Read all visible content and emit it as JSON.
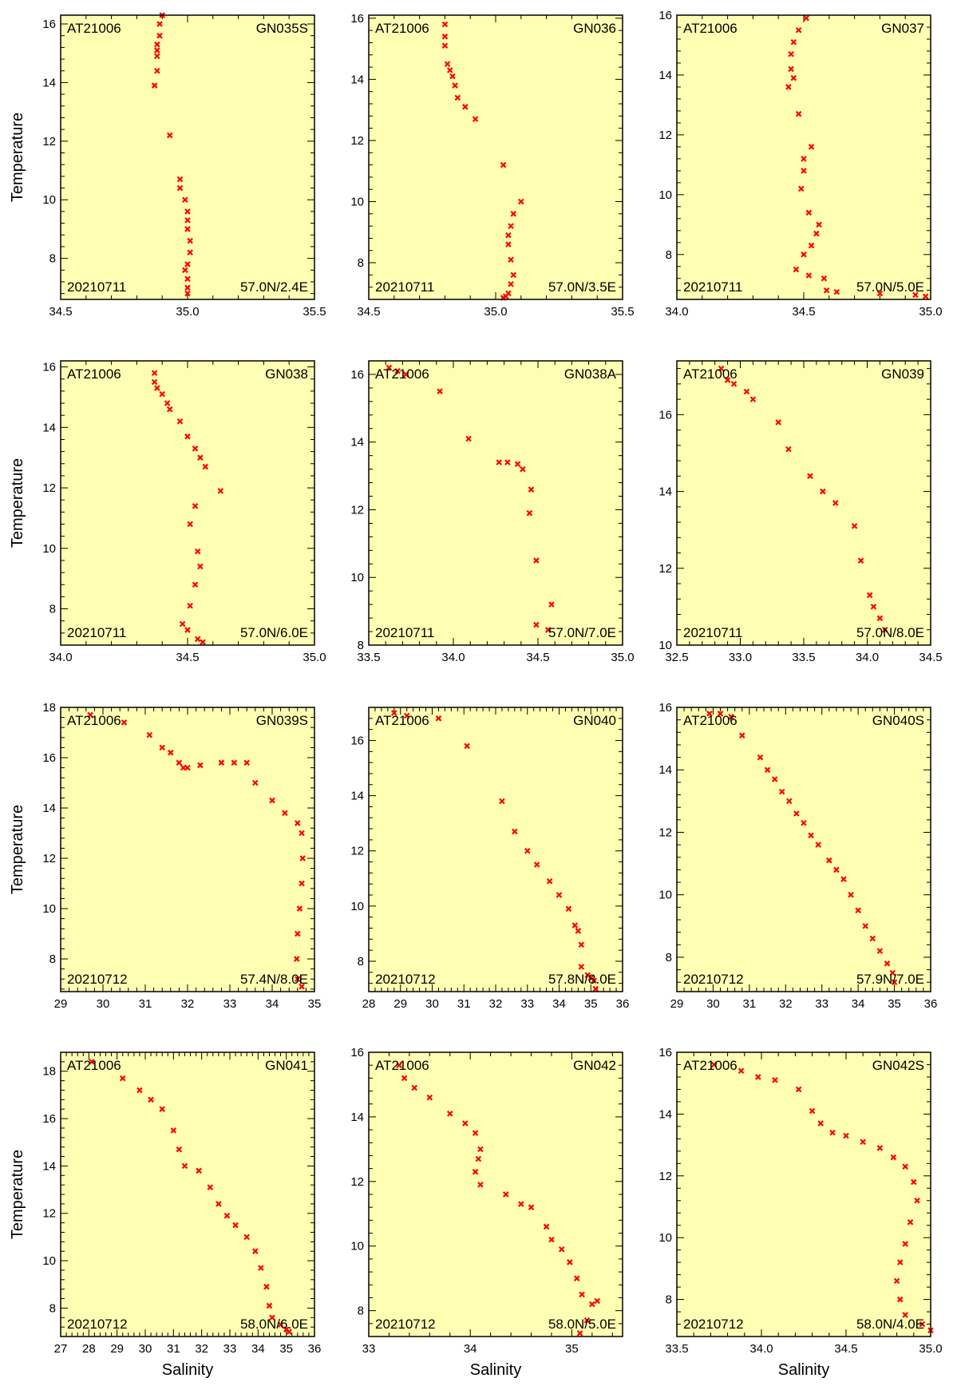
{
  "ylabel": "Temperature",
  "xlabel": "Salinity",
  "colors": {
    "plot_bg": "#ffffb3",
    "marker": "#ff0000"
  },
  "chart_data": [
    {
      "type": "scatter",
      "cruise": "AT21006",
      "station": "GN035S",
      "date": "20210711",
      "position": "57.0N/2.4E",
      "xlim": [
        34.5,
        35.5
      ],
      "ylim": [
        6.6,
        16.3
      ],
      "xticks": [
        "34.5",
        "35.0",
        "35.5"
      ],
      "yticks": [
        "8",
        "10",
        "12",
        "14",
        "16"
      ],
      "x": [
        34.9,
        34.89,
        34.89,
        34.88,
        34.88,
        34.88,
        34.88,
        34.87,
        34.93,
        34.97,
        34.97,
        34.99,
        35.0,
        35.0,
        35.0,
        35.01,
        35.01,
        35.0,
        34.99,
        35.0,
        35.0,
        35.0
      ],
      "y": [
        16.3,
        16.0,
        15.6,
        15.3,
        15.1,
        14.9,
        14.4,
        13.9,
        12.2,
        10.7,
        10.4,
        10.0,
        9.6,
        9.3,
        9.0,
        8.6,
        8.2,
        7.8,
        7.6,
        7.3,
        7.0,
        6.8
      ]
    },
    {
      "type": "scatter",
      "cruise": "AT21006",
      "station": "GN036",
      "date": "20210711",
      "position": "57.0N/3.5E",
      "xlim": [
        34.5,
        35.5
      ],
      "ylim": [
        6.8,
        16.1
      ],
      "xticks": [
        "34.5",
        "35.0",
        "35.5"
      ],
      "yticks": [
        "8",
        "10",
        "12",
        "14",
        "16"
      ],
      "x": [
        34.8,
        34.8,
        34.8,
        34.81,
        34.82,
        34.83,
        34.84,
        34.85,
        34.88,
        34.92,
        35.03,
        35.1,
        35.07,
        35.06,
        35.05,
        35.05,
        35.06,
        35.07,
        35.06,
        35.05,
        35.04,
        35.03
      ],
      "y": [
        15.8,
        15.4,
        15.1,
        14.5,
        14.3,
        14.1,
        13.8,
        13.4,
        13.1,
        12.7,
        11.2,
        10.0,
        9.6,
        9.2,
        8.9,
        8.6,
        8.1,
        7.6,
        7.3,
        7.0,
        6.9,
        6.85
      ]
    },
    {
      "type": "scatter",
      "cruise": "AT21006",
      "station": "GN037",
      "date": "20210711",
      "position": "57.0N/5.0E",
      "xlim": [
        34.0,
        35.0
      ],
      "ylim": [
        6.5,
        16.0
      ],
      "xticks": [
        "34.0",
        "34.5",
        "35.0"
      ],
      "yticks": [
        "8",
        "10",
        "12",
        "14",
        "16"
      ],
      "x": [
        34.51,
        34.48,
        34.46,
        34.45,
        34.45,
        34.46,
        34.44,
        34.48,
        34.53,
        34.5,
        34.5,
        34.49,
        34.52,
        34.56,
        34.55,
        34.53,
        34.5,
        34.47,
        34.52,
        34.58,
        34.59,
        34.63,
        34.8,
        34.94,
        34.98
      ],
      "y": [
        15.9,
        15.5,
        15.1,
        14.7,
        14.2,
        13.9,
        13.6,
        12.7,
        11.6,
        11.2,
        10.8,
        10.2,
        9.4,
        9.0,
        8.7,
        8.3,
        8.0,
        7.5,
        7.3,
        7.2,
        6.8,
        6.75,
        6.7,
        6.65,
        6.6
      ]
    },
    {
      "type": "scatter",
      "cruise": "AT21006",
      "station": "GN038",
      "date": "20210711",
      "position": "57.0N/6.0E",
      "xlim": [
        34.0,
        35.0
      ],
      "ylim": [
        6.8,
        16.2
      ],
      "xticks": [
        "34.0",
        "34.5",
        "35.0"
      ],
      "yticks": [
        "8",
        "10",
        "12",
        "14",
        "16"
      ],
      "x": [
        34.37,
        34.37,
        34.38,
        34.4,
        34.42,
        34.43,
        34.47,
        34.5,
        34.53,
        34.55,
        34.57,
        34.63,
        34.53,
        34.51,
        34.54,
        34.55,
        34.53,
        34.51,
        34.48,
        34.5,
        34.54,
        34.56
      ],
      "y": [
        15.8,
        15.5,
        15.3,
        15.1,
        14.8,
        14.6,
        14.2,
        13.7,
        13.3,
        13.0,
        12.7,
        11.9,
        11.4,
        10.8,
        9.9,
        9.4,
        8.8,
        8.1,
        7.5,
        7.3,
        7.0,
        6.9
      ]
    },
    {
      "type": "scatter",
      "cruise": "AT21006",
      "station": "GN038A",
      "date": "20210711",
      "position": "57.0N/7.0E",
      "xlim": [
        33.5,
        35.0
      ],
      "ylim": [
        8.0,
        16.4
      ],
      "xticks": [
        "33.5",
        "34.0",
        "34.5",
        "35.0"
      ],
      "yticks": [
        "8",
        "10",
        "12",
        "14",
        "16"
      ],
      "x": [
        33.62,
        33.67,
        33.72,
        33.92,
        34.09,
        34.27,
        34.32,
        34.38,
        34.41,
        34.46,
        34.45,
        34.49,
        34.58,
        34.49,
        34.56
      ],
      "y": [
        16.2,
        16.1,
        16.0,
        15.5,
        14.1,
        13.4,
        13.4,
        13.35,
        13.2,
        12.6,
        11.9,
        10.5,
        9.2,
        8.6,
        8.45
      ]
    },
    {
      "type": "scatter",
      "cruise": "AT21006",
      "station": "GN039",
      "date": "20210711",
      "position": "57.0N/8.0E",
      "xlim": [
        32.5,
        34.5
      ],
      "ylim": [
        10.0,
        17.4
      ],
      "xticks": [
        "32.5",
        "33.0",
        "33.5",
        "34.0",
        "34.5"
      ],
      "yticks": [
        "10",
        "12",
        "14",
        "16"
      ],
      "x": [
        32.85,
        32.9,
        32.95,
        33.05,
        33.1,
        33.3,
        33.38,
        33.55,
        33.65,
        33.75,
        33.9,
        33.95,
        34.02,
        34.05,
        34.1,
        34.14
      ],
      "y": [
        17.2,
        16.9,
        16.8,
        16.6,
        16.4,
        15.8,
        15.1,
        14.4,
        14.0,
        13.7,
        13.1,
        12.2,
        11.3,
        11.0,
        10.7,
        10.4
      ]
    },
    {
      "type": "scatter",
      "cruise": "AT21006",
      "station": "GN039S",
      "date": "20210712",
      "position": "57.4N/8.0E",
      "xlim": [
        29,
        35
      ],
      "ylim": [
        6.7,
        18.0
      ],
      "xticks": [
        "29",
        "30",
        "31",
        "32",
        "33",
        "34",
        "35"
      ],
      "yticks": [
        "8",
        "10",
        "12",
        "14",
        "16",
        "18"
      ],
      "x": [
        29.7,
        30.5,
        31.1,
        31.4,
        31.6,
        31.8,
        31.9,
        32.0,
        32.3,
        32.8,
        33.1,
        33.4,
        33.6,
        34.0,
        34.3,
        34.6,
        34.7,
        34.72,
        34.7,
        34.65,
        34.6,
        34.58,
        34.6,
        34.7
      ],
      "y": [
        17.7,
        17.4,
        16.9,
        16.4,
        16.2,
        15.8,
        15.6,
        15.6,
        15.7,
        15.8,
        15.8,
        15.8,
        15.0,
        14.3,
        13.8,
        13.4,
        13.0,
        12.0,
        11.0,
        10.0,
        9.0,
        8.0,
        7.2,
        6.9
      ]
    },
    {
      "type": "scatter",
      "cruise": "AT21006",
      "station": "GN040",
      "date": "20210712",
      "position": "57.8N/8.0E",
      "xlim": [
        28,
        36
      ],
      "ylim": [
        6.9,
        17.2
      ],
      "xticks": [
        "28",
        "29",
        "30",
        "31",
        "32",
        "33",
        "34",
        "35",
        "36"
      ],
      "yticks": [
        "8",
        "10",
        "12",
        "14",
        "16"
      ],
      "x": [
        28.8,
        29.2,
        30.2,
        31.1,
        32.2,
        32.6,
        33.0,
        33.3,
        33.7,
        34.0,
        34.3,
        34.5,
        34.6,
        34.7,
        34.7,
        34.9,
        35.0,
        35.1,
        35.15
      ],
      "y": [
        17.0,
        16.9,
        16.8,
        15.8,
        13.8,
        12.7,
        12.0,
        11.5,
        10.9,
        10.4,
        9.9,
        9.3,
        9.1,
        8.6,
        7.8,
        7.5,
        7.4,
        7.3,
        7.0
      ]
    },
    {
      "type": "scatter",
      "cruise": "AT21006",
      "station": "GN040S",
      "date": "20210712",
      "position": "57.9N/7.0E",
      "xlim": [
        29,
        36
      ],
      "ylim": [
        6.9,
        16.0
      ],
      "xticks": [
        "29",
        "30",
        "31",
        "32",
        "33",
        "34",
        "35",
        "36"
      ],
      "yticks": [
        "8",
        "10",
        "12",
        "14",
        "16"
      ],
      "x": [
        29.9,
        30.2,
        30.5,
        30.8,
        31.3,
        31.5,
        31.7,
        31.9,
        32.1,
        32.3,
        32.5,
        32.7,
        32.9,
        33.2,
        33.4,
        33.6,
        33.8,
        34.0,
        34.2,
        34.4,
        34.6,
        34.8,
        34.95,
        35.0
      ],
      "y": [
        15.8,
        15.8,
        15.7,
        15.1,
        14.4,
        14.0,
        13.7,
        13.3,
        13.0,
        12.6,
        12.3,
        11.9,
        11.6,
        11.1,
        10.8,
        10.5,
        10.0,
        9.5,
        9.0,
        8.6,
        8.2,
        7.8,
        7.5,
        7.2
      ]
    },
    {
      "type": "scatter",
      "cruise": "AT21006",
      "station": "GN041",
      "date": "20210712",
      "position": "58.0N/6.0E",
      "xlim": [
        27,
        36
      ],
      "ylim": [
        6.8,
        18.8
      ],
      "xticks": [
        "27",
        "28",
        "29",
        "30",
        "31",
        "32",
        "33",
        "34",
        "35",
        "36"
      ],
      "yticks": [
        "8",
        "10",
        "12",
        "14",
        "16",
        "18"
      ],
      "x": [
        28.1,
        29.2,
        29.8,
        30.2,
        30.6,
        31.0,
        31.2,
        31.4,
        31.9,
        32.3,
        32.6,
        32.9,
        33.2,
        33.6,
        33.9,
        34.1,
        34.3,
        34.4,
        34.5,
        34.8,
        35.0,
        35.1
      ],
      "y": [
        18.4,
        17.7,
        17.2,
        16.8,
        16.4,
        15.5,
        14.7,
        14.0,
        13.8,
        13.1,
        12.4,
        11.9,
        11.5,
        11.0,
        10.4,
        9.7,
        8.9,
        8.1,
        7.6,
        7.3,
        7.1,
        7.0
      ]
    },
    {
      "type": "scatter",
      "cruise": "AT21006",
      "station": "GN042",
      "date": "20210712",
      "position": "58.0N/5.0E",
      "xlim": [
        33.0,
        35.5
      ],
      "ylim": [
        7.2,
        16.0
      ],
      "xticks": [
        "33",
        "34",
        "35"
      ],
      "yticks": [
        "8",
        "10",
        "12",
        "14",
        "16"
      ],
      "x": [
        33.3,
        33.35,
        33.45,
        33.6,
        33.8,
        33.95,
        34.05,
        34.1,
        34.08,
        34.05,
        34.1,
        34.35,
        34.5,
        34.6,
        34.75,
        34.8,
        34.9,
        34.98,
        35.05,
        35.1,
        35.2,
        35.25,
        35.15,
        35.08
      ],
      "y": [
        15.6,
        15.2,
        14.9,
        14.6,
        14.1,
        13.8,
        13.5,
        13.0,
        12.7,
        12.3,
        11.9,
        11.6,
        11.3,
        11.2,
        10.6,
        10.2,
        9.9,
        9.5,
        9.0,
        8.5,
        8.2,
        8.3,
        7.7,
        7.3
      ]
    },
    {
      "type": "scatter",
      "cruise": "AT21006",
      "station": "GN042S",
      "date": "20210712",
      "position": "58.0N/4.0E",
      "xlim": [
        33.5,
        35.0
      ],
      "ylim": [
        6.8,
        16.0
      ],
      "xticks": [
        "33.5",
        "34.0",
        "34.5",
        "35.0"
      ],
      "yticks": [
        "8",
        "10",
        "12",
        "14",
        "16"
      ],
      "x": [
        33.72,
        33.88,
        33.98,
        34.08,
        34.22,
        34.3,
        34.35,
        34.42,
        34.5,
        34.6,
        34.7,
        34.78,
        34.85,
        34.9,
        34.92,
        34.88,
        34.85,
        34.82,
        34.8,
        34.82,
        34.85,
        34.95,
        35.0
      ],
      "y": [
        15.6,
        15.4,
        15.2,
        15.1,
        14.8,
        14.1,
        13.7,
        13.4,
        13.3,
        13.1,
        12.9,
        12.6,
        12.3,
        11.8,
        11.2,
        10.5,
        9.8,
        9.2,
        8.6,
        8.0,
        7.5,
        7.2,
        7.0
      ]
    }
  ]
}
